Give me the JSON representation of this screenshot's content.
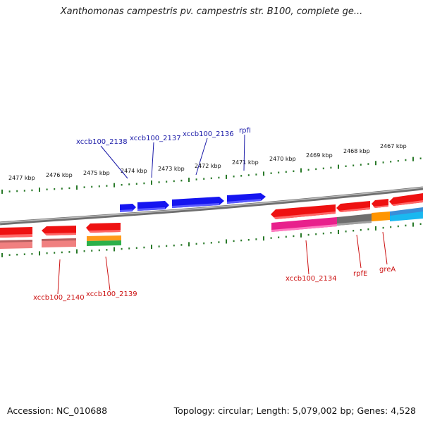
{
  "title": "Xanthomonas campestris pv. campestris str. B100, complete ge...",
  "footer": {
    "accession": "Accession: NC_010688",
    "summary": "Topology: circular; Length: 5,079,002 bp; Genes: 4,528"
  },
  "ruler_labels": [
    "2477 kbp",
    "2476 kbp",
    "2475 kbp",
    "2474 kbp",
    "2473 kbp",
    "2472 kbp",
    "2471 kbp",
    "2470 kbp",
    "2469 kbp",
    "2468 kbp",
    "2467 kbp"
  ],
  "forward_gene_labels": [
    "xccb100_2138",
    "xccb100_2137",
    "xccb100_2136",
    "rpfI"
  ],
  "reverse_gene_labels": [
    "xccb100_2140",
    "xccb100_2139",
    "xccb100_2134",
    "rpfE",
    "greA"
  ],
  "colors": {
    "forward_gene": "#1010ee",
    "reverse_gene": "#ee1111",
    "forward_label": "#1a1aa8",
    "reverse_label": "#cc1111",
    "ruler_tick": "#2a7a2a",
    "backbone": "#808080"
  }
}
